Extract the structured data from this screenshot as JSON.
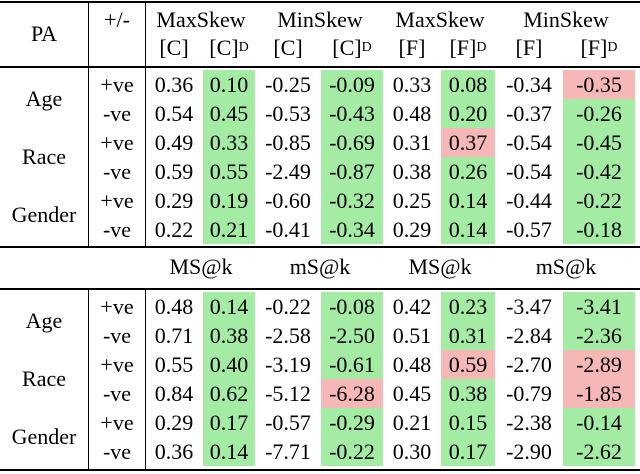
{
  "header": {
    "pa": "PA",
    "sign": "+/-",
    "groups": [
      "MaxSkew",
      "MinSkew",
      "MaxSkew",
      "MinSkew"
    ],
    "subheaders": [
      {
        "text": "[C]"
      },
      {
        "text": "[C]",
        "sub": "D"
      },
      {
        "text": "[C]"
      },
      {
        "text": "[C]",
        "sub": "D"
      },
      {
        "text": "[F]"
      },
      {
        "text": "[F]",
        "sub": "D"
      },
      {
        "text": "[F]"
      },
      {
        "text": "[F]",
        "sub": "D"
      }
    ]
  },
  "colors": {
    "green": "#a4eca4",
    "red": "#f6b7b7"
  },
  "sections": [
    {
      "groups": [
        {
          "pa": "Age",
          "rows": [
            {
              "sign": "+ve",
              "cells": [
                "0.36",
                "0.10",
                "-0.25",
                "-0.09",
                "0.33",
                "0.08",
                "-0.34",
                "-0.35"
              ],
              "green": [
                1,
                3,
                5
              ],
              "red": [
                7
              ]
            },
            {
              "sign": "-ve",
              "cells": [
                "0.54",
                "0.45",
                "-0.53",
                "-0.43",
                "0.48",
                "0.20",
                "-0.37",
                "-0.26"
              ],
              "green": [
                1,
                3,
                5,
                7
              ],
              "red": []
            }
          ]
        },
        {
          "pa": "Race",
          "rows": [
            {
              "sign": "+ve",
              "cells": [
                "0.49",
                "0.33",
                "-0.85",
                "-0.69",
                "0.31",
                "0.37",
                "-0.54",
                "-0.45"
              ],
              "green": [
                1,
                3,
                7
              ],
              "red": [
                5
              ]
            },
            {
              "sign": "-ve",
              "cells": [
                "0.59",
                "0.55",
                "-2.49",
                "-0.87",
                "0.38",
                "0.26",
                "-0.54",
                "-0.42"
              ],
              "green": [
                1,
                3,
                5,
                7
              ],
              "red": []
            }
          ]
        },
        {
          "pa": "Gender",
          "rows": [
            {
              "sign": "+ve",
              "cells": [
                "0.29",
                "0.19",
                "-0.60",
                "-0.32",
                "0.25",
                "0.14",
                "-0.44",
                "-0.22"
              ],
              "green": [
                1,
                3,
                5,
                7
              ],
              "red": []
            },
            {
              "sign": "-ve",
              "cells": [
                "0.22",
                "0.21",
                "-0.41",
                "-0.34",
                "0.29",
                "0.14",
                "-0.57",
                "-0.18"
              ],
              "green": [
                1,
                3,
                5,
                7
              ],
              "red": []
            }
          ]
        }
      ]
    },
    {
      "metrics": [
        "MS@k",
        "mS@k",
        "MS@k",
        "mS@k"
      ],
      "groups": [
        {
          "pa": "Age",
          "rows": [
            {
              "sign": "+ve",
              "cells": [
                "0.48",
                "0.14",
                "-0.22",
                "-0.08",
                "0.42",
                "0.23",
                "-3.47",
                "-3.41"
              ],
              "green": [
                1,
                3,
                5,
                7
              ],
              "red": []
            },
            {
              "sign": "-ve",
              "cells": [
                "0.71",
                "0.38",
                "-2.58",
                "-2.50",
                "0.51",
                "0.31",
                "-2.84",
                "-2.36"
              ],
              "green": [
                1,
                3,
                5,
                7
              ],
              "red": []
            }
          ]
        },
        {
          "pa": "Race",
          "rows": [
            {
              "sign": "+ve",
              "cells": [
                "0.55",
                "0.40",
                "-3.19",
                "-0.61",
                "0.48",
                "0.59",
                "-2.70",
                "-2.89"
              ],
              "green": [
                1,
                3
              ],
              "red": [
                5,
                7
              ]
            },
            {
              "sign": "-ve",
              "cells": [
                "0.84",
                "0.62",
                "-5.12",
                "-6.28",
                "0.45",
                "0.38",
                "-0.79",
                "-1.85"
              ],
              "green": [
                1,
                5
              ],
              "red": [
                3,
                7
              ]
            }
          ]
        },
        {
          "pa": "Gender",
          "rows": [
            {
              "sign": "+ve",
              "cells": [
                "0.29",
                "0.17",
                "-0.57",
                "-0.29",
                "0.21",
                "0.15",
                "-2.38",
                "-0.14"
              ],
              "green": [
                1,
                3,
                5,
                7
              ],
              "red": []
            },
            {
              "sign": "-ve",
              "cells": [
                "0.36",
                "0.14",
                "-7.71",
                "-0.22",
                "0.30",
                "0.17",
                "-2.90",
                "-2.62"
              ],
              "green": [
                1,
                3,
                5,
                7
              ],
              "red": []
            }
          ]
        }
      ]
    }
  ]
}
